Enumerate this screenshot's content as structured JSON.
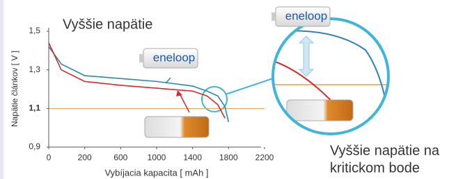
{
  "chart_data": {
    "type": "line",
    "title": "Vyššie napätie",
    "x_label": "Vybíjacia kapacita [ mAh ]",
    "y_label": "Napätie článkov [ V ]",
    "annotations": [
      "Vyššie napätie na",
      "kritickom bode"
    ],
    "battery_labels": [
      "eneloop",
      "eneloop"
    ],
    "x": [
      0,
      70,
      200,
      600,
      1000,
      1400,
      1560,
      1680,
      1760,
      1800
    ],
    "series": [
      {
        "color": "#2a86b0",
        "values": [
          1.42,
          1.33,
          1.27,
          1.255,
          1.24,
          1.216,
          1.19,
          1.165,
          1.11,
          1.03
        ]
      },
      {
        "color": "#d42b2b",
        "values": [
          1.44,
          1.3,
          1.24,
          1.22,
          1.205,
          1.19,
          1.165,
          1.12,
          1.05,
          null
        ]
      }
    ],
    "reference_line": 1.1,
    "reference_color": "#e8a04a",
    "xlim": [
      0,
      2200
    ],
    "xticks": [
      0,
      200,
      600,
      1000,
      1400,
      1800,
      2200
    ],
    "ylim": [
      0.9,
      1.5
    ],
    "yticks": [
      {
        "value": 0.9,
        "label": "0,9"
      },
      {
        "value": 1.1,
        "label": "1,1"
      },
      {
        "value": 1.3,
        "label": "1,3"
      },
      {
        "value": 1.5,
        "label": "1,5"
      }
    ]
  }
}
